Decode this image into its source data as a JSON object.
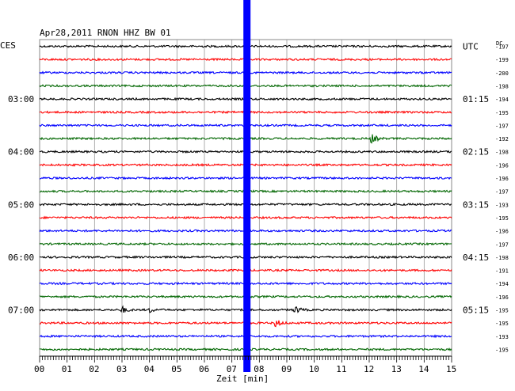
{
  "header": {
    "title": "Apr28,2011   RNON HHZ BW 01",
    "left_timezone": "CES",
    "right_timezone": "UTC",
    "dc_label": "DC"
  },
  "chart_data": {
    "type": "line",
    "title": "Apr28,2011   RNON HHZ BW 01",
    "xlabel": "Zeit [min]",
    "ylabel": "",
    "x_ticks": [
      "00",
      "01",
      "02",
      "03",
      "04",
      "05",
      "06",
      "07",
      "08",
      "09",
      "10",
      "11",
      "12",
      "13",
      "14",
      "15"
    ],
    "xlim": [
      0,
      15
    ],
    "grid": true,
    "trace_colors": [
      "#000000",
      "#ff0000",
      "#0000ff",
      "#006600"
    ],
    "left_hour_labels": [
      {
        "trace": 4,
        "text": "03:00"
      },
      {
        "trace": 8,
        "text": "04:00"
      },
      {
        "trace": 12,
        "text": "05:00"
      },
      {
        "trace": 16,
        "text": "06:00"
      },
      {
        "trace": 20,
        "text": "07:00"
      }
    ],
    "right_hour_labels": [
      {
        "trace": 0,
        "text": "UTC"
      },
      {
        "trace": 4,
        "text": "01:15"
      },
      {
        "trace": 8,
        "text": "02:15"
      },
      {
        "trace": 12,
        "text": "03:15"
      },
      {
        "trace": 16,
        "text": "04:15"
      },
      {
        "trace": 20,
        "text": "05:15"
      }
    ],
    "dc_offsets": [
      "-197",
      "-199",
      "-200",
      "-198",
      "-194",
      "-195",
      "-197",
      "-192",
      "-198",
      "-196",
      "-196",
      "-197",
      "-193",
      "-195",
      "-196",
      "-197",
      "-198",
      "-191",
      "-194",
      "-196",
      "-195",
      "-195",
      "-193",
      "-195"
    ],
    "blue_marker_minute": 7.55,
    "events": [
      {
        "trace": 7,
        "minute": 12.1,
        "amplitude": 6
      },
      {
        "trace": 20,
        "minute": 3.0,
        "amplitude": 4
      },
      {
        "trace": 20,
        "minute": 4.0,
        "amplitude": 3
      },
      {
        "trace": 20,
        "minute": 9.3,
        "amplitude": 5
      },
      {
        "trace": 21,
        "minute": 8.6,
        "amplitude": 5
      }
    ]
  }
}
